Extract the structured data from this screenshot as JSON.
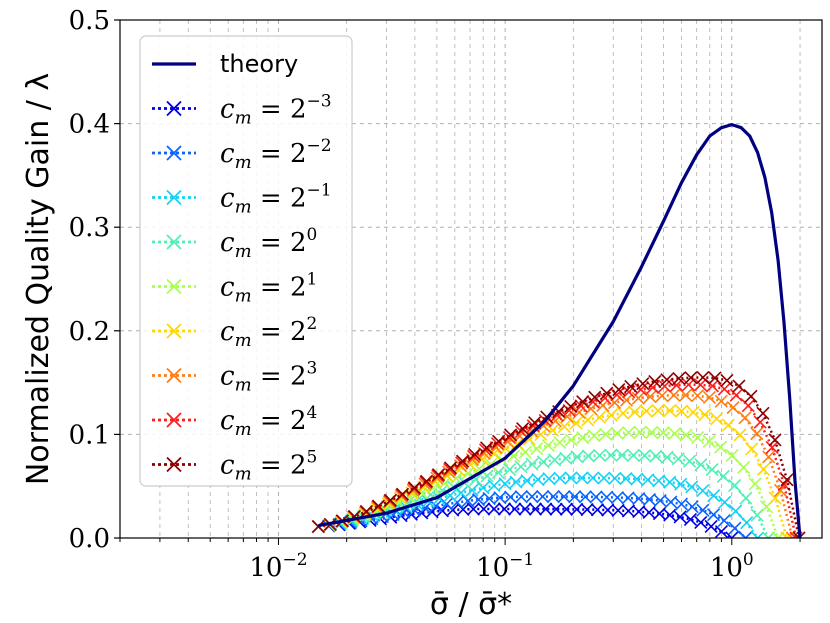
{
  "chart_data": {
    "type": "line",
    "xscale": "log",
    "xlim": [
      0.002,
      2.5
    ],
    "ylim": [
      0.0,
      0.5
    ],
    "xlabel": "σ̄ / σ̄*",
    "ylabel": "Normalized Quality Gain / λ",
    "x_ticks": [
      {
        "value": 0.01,
        "base": "10",
        "exp": "−2"
      },
      {
        "value": 0.1,
        "base": "10",
        "exp": "−1"
      },
      {
        "value": 1,
        "base": "10",
        "exp": "0"
      }
    ],
    "y_ticks": [
      {
        "value": 0.0,
        "label": "0.0"
      },
      {
        "value": 0.1,
        "label": "0.1"
      },
      {
        "value": 0.2,
        "label": "0.2"
      },
      {
        "value": 0.3,
        "label": "0.3"
      },
      {
        "value": 0.4,
        "label": "0.4"
      },
      {
        "value": 0.5,
        "label": "0.5"
      }
    ],
    "grid": true,
    "legend_position": "upper-left",
    "theory": {
      "name": "theory",
      "color": "#000080",
      "x": [
        0.015,
        0.03,
        0.05,
        0.1,
        0.15,
        0.2,
        0.3,
        0.4,
        0.5,
        0.6,
        0.7,
        0.8,
        0.9,
        1.0,
        1.1,
        1.2,
        1.3,
        1.4,
        1.5,
        1.6,
        1.7,
        1.8,
        1.9,
        2.0
      ],
      "y": [
        0.012,
        0.024,
        0.039,
        0.077,
        0.113,
        0.147,
        0.209,
        0.262,
        0.306,
        0.343,
        0.37,
        0.388,
        0.396,
        0.399,
        0.396,
        0.388,
        0.372,
        0.348,
        0.314,
        0.268,
        0.208,
        0.135,
        0.055,
        0.0
      ]
    },
    "series": [
      {
        "name": "c_m = 2^-3",
        "label_base": "2",
        "label_exp": "−3",
        "color": "#0000e6",
        "peak_x": 0.08,
        "peak_y": 0.028,
        "x_end": 1.0
      },
      {
        "name": "c_m = 2^-2",
        "label_base": "2",
        "label_exp": "−2",
        "color": "#0a64ff",
        "peak_x": 0.13,
        "peak_y": 0.04,
        "x_end": 1.15
      },
      {
        "name": "c_m = 2^-1",
        "label_base": "2",
        "label_exp": "−1",
        "color": "#14d2f5",
        "peak_x": 0.2,
        "peak_y": 0.058,
        "x_end": 1.3
      },
      {
        "name": "c_m = 2^0",
        "label_base": "2",
        "label_exp": "0",
        "color": "#50f0b4",
        "peak_x": 0.3,
        "peak_y": 0.08,
        "x_end": 1.45
      },
      {
        "name": "c_m = 2^1",
        "label_base": "2",
        "label_exp": "1",
        "color": "#a8ff50",
        "peak_x": 0.4,
        "peak_y": 0.102,
        "x_end": 1.6
      },
      {
        "name": "c_m = 2^2",
        "label_base": "2",
        "label_exp": "2",
        "color": "#ffd700",
        "peak_x": 0.5,
        "peak_y": 0.123,
        "x_end": 1.75
      },
      {
        "name": "c_m = 2^3",
        "label_base": "2",
        "label_exp": "3",
        "color": "#ff7d14",
        "peak_x": 0.6,
        "peak_y": 0.138,
        "x_end": 1.85
      },
      {
        "name": "c_m = 2^4",
        "label_base": "2",
        "label_exp": "4",
        "color": "#ff1e1e",
        "peak_x": 0.68,
        "peak_y": 0.148,
        "x_end": 1.92
      },
      {
        "name": "c_m = 2^5",
        "label_base": "2",
        "label_exp": "5",
        "color": "#8b0000",
        "peak_x": 0.75,
        "peak_y": 0.155,
        "x_end": 1.98
      }
    ],
    "series_x_start": 0.015,
    "series_y_start": 0.011,
    "legend_label_symbol": "c",
    "legend_label_sub": "m",
    "legend_label_eq": " = "
  }
}
